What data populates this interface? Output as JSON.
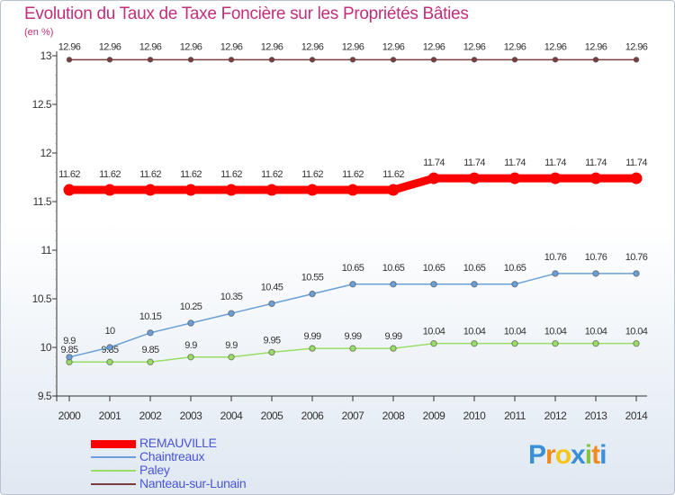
{
  "title": "Evolution du Taux de Taxe Foncière sur les Propriétés Bâties",
  "unit_label": "(en %)",
  "chart_data": {
    "type": "line",
    "title": "Evolution du Taux de Taxe Foncière sur les Propriétés Bâties",
    "ylabel": "(en %)",
    "xlabel": "",
    "x": [
      "2000",
      "2001",
      "2002",
      "2003",
      "2004",
      "2005",
      "2006",
      "2007",
      "2008",
      "2009",
      "2010",
      "2011",
      "2012",
      "2013",
      "2014"
    ],
    "ylim": [
      9.5,
      13
    ],
    "yticks": [
      9.5,
      10,
      10.5,
      11,
      11.5,
      12,
      12.5,
      13
    ],
    "ytick_labels": [
      "9.5",
      "10",
      "10.5",
      "11",
      "11.5",
      "12",
      "12.5",
      "13"
    ],
    "grid": false,
    "legend_position": "bottom-left",
    "series": [
      {
        "name": "REMAUVILLE",
        "color": "#ff0000",
        "values": [
          11.62,
          11.62,
          11.62,
          11.62,
          11.62,
          11.62,
          11.62,
          11.62,
          11.62,
          11.74,
          11.74,
          11.74,
          11.74,
          11.74,
          11.74
        ],
        "labels": [
          "11.62",
          "11.62",
          "11.62",
          "11.62",
          "11.62",
          "11.62",
          "11.62",
          "11.62",
          "11.62",
          "11.74",
          "11.74",
          "11.74",
          "11.74",
          "11.74",
          "11.74"
        ]
      },
      {
        "name": "Chaintreaux",
        "color": "#6b9fd6",
        "values": [
          9.9,
          10,
          10.15,
          10.25,
          10.35,
          10.45,
          10.55,
          10.65,
          10.65,
          10.65,
          10.65,
          10.65,
          10.76,
          10.76,
          10.76
        ],
        "labels": [
          "9.9",
          "10",
          "10.15",
          "10.25",
          "10.35",
          "10.45",
          "10.55",
          "10.65",
          "10.65",
          "10.65",
          "10.65",
          "10.65",
          "10.76",
          "10.76",
          "10.76"
        ]
      },
      {
        "name": "Paley",
        "color": "#99dd66",
        "values": [
          9.85,
          9.85,
          9.85,
          9.9,
          9.9,
          9.95,
          9.99,
          9.99,
          9.99,
          10.04,
          10.04,
          10.04,
          10.04,
          10.04,
          10.04
        ],
        "labels": [
          "9.85",
          "9.85",
          "9.85",
          "9.9",
          "9.9",
          "9.95",
          "9.99",
          "9.99",
          "9.99",
          "10.04",
          "10.04",
          "10.04",
          "10.04",
          "10.04",
          "10.04"
        ]
      },
      {
        "name": "Nanteau-sur-Lunain",
        "color": "#7a3c3c",
        "values": [
          12.96,
          12.96,
          12.96,
          12.96,
          12.96,
          12.96,
          12.96,
          12.96,
          12.96,
          12.96,
          12.96,
          12.96,
          12.96,
          12.96,
          12.96
        ],
        "labels": [
          "12.96",
          "12.96",
          "12.96",
          "12.96",
          "12.96",
          "12.96",
          "12.96",
          "12.96",
          "12.96",
          "12.96",
          "12.96",
          "12.96",
          "12.96",
          "12.96",
          "12.96"
        ]
      }
    ]
  },
  "logo": {
    "letters": [
      "P",
      "r",
      "o",
      "x",
      "i",
      "t",
      "i"
    ],
    "colors": [
      "#3a8fd6",
      "#f08a1c",
      "#f5c518",
      "#3a8fd6",
      "#86c440",
      "#f08a1c",
      "#3a8fd6"
    ]
  }
}
